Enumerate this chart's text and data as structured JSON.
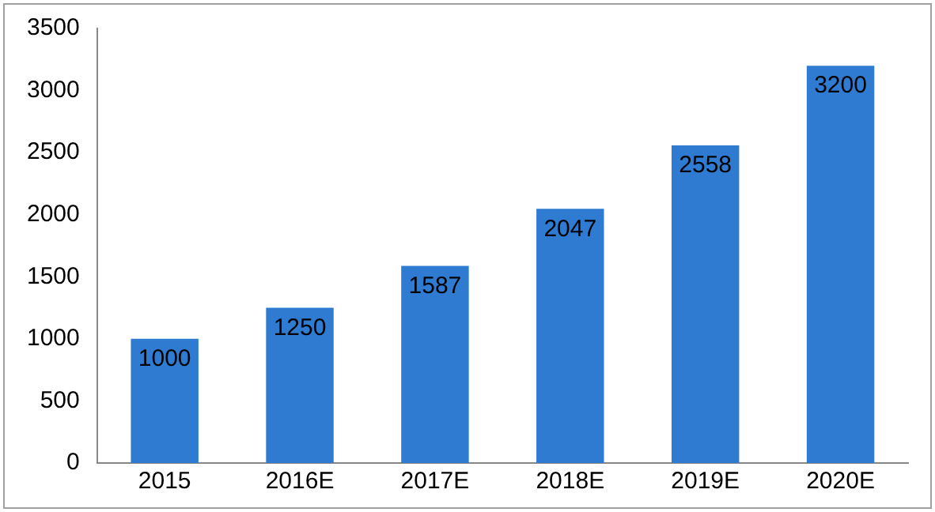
{
  "chart_data": {
    "type": "bar",
    "categories": [
      "2015",
      "2016E",
      "2017E",
      "2018E",
      "2019E",
      "2020E"
    ],
    "values": [
      1000,
      1250,
      1587,
      2047,
      2558,
      3200
    ],
    "color": "#2e7bd1",
    "ylim": [
      0,
      3500
    ],
    "yticks": [
      0,
      500,
      1000,
      1500,
      2000,
      2500,
      3000,
      3500
    ],
    "grid": false,
    "legend": false,
    "data_labels": true
  }
}
